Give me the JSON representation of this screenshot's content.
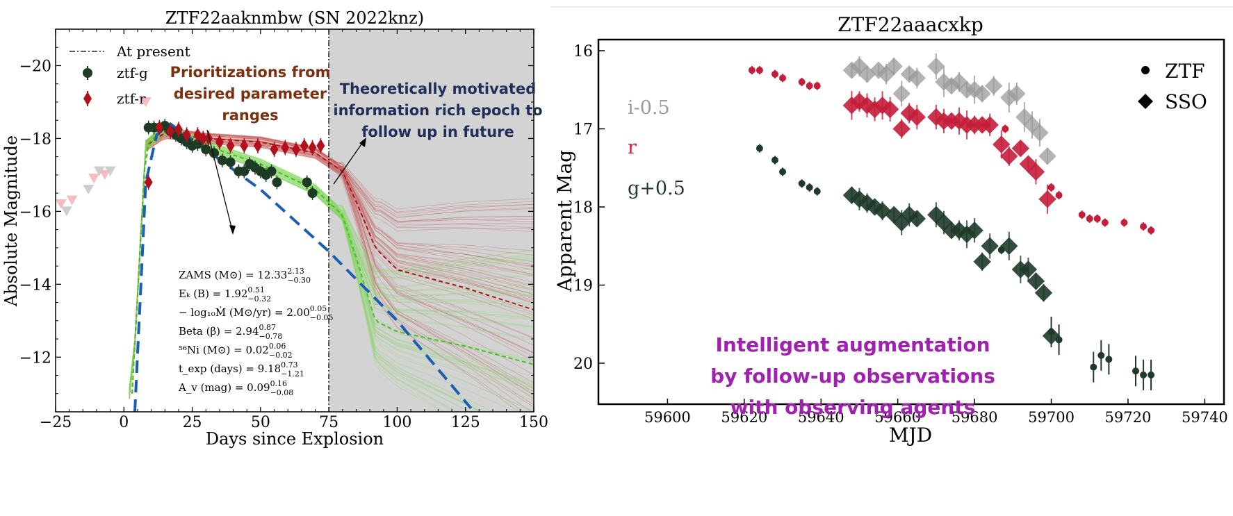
{
  "chart_data": [
    {
      "type": "line",
      "title": "ZTF22aaknmbw (SN 2022knz)",
      "xlabel": "Days since Explosion",
      "ylabel": "Absolute Magnitude",
      "xlim": [
        -25,
        150
      ],
      "ylim": [
        -10.5,
        -21.0
      ],
      "y_inverted": true,
      "xticks": [
        "−25",
        "0",
        "25",
        "50",
        "75",
        "100",
        "125",
        "150"
      ],
      "yticks": [
        "−20",
        "−18",
        "−16",
        "−14",
        "−12"
      ],
      "legend": {
        "placement": "top-left",
        "entries": [
          "At present",
          "ztf-g",
          "ztf-r"
        ]
      },
      "colors": {
        "g": "#1d3a24",
        "r": "#b3101e",
        "model_g": "#7ed957",
        "model_r": "#c0504d",
        "fit": "#1a5fb4",
        "future_band": "#d3d3d3"
      },
      "present_day": 75,
      "series": [
        {
          "name": "ztf-g",
          "marker": "circle",
          "x": [
            9,
            11,
            13,
            15,
            17,
            19,
            21,
            23,
            25,
            27,
            30,
            33,
            36,
            39,
            42,
            44,
            46,
            48,
            50,
            52,
            54,
            56,
            67,
            69
          ],
          "y": [
            -18.3,
            -18.3,
            -18.3,
            -18.35,
            -18.2,
            -18.1,
            -18.0,
            -17.9,
            -17.8,
            -17.85,
            -17.7,
            -17.6,
            -17.4,
            -17.35,
            -17.1,
            -17.1,
            -17.3,
            -17.2,
            -17.1,
            -17.0,
            -17.1,
            -16.8,
            -16.8,
            -16.5
          ]
        },
        {
          "name": "ztf-r",
          "marker": "diamond",
          "x": [
            9,
            13,
            17,
            20,
            23,
            27,
            29,
            31,
            35,
            39,
            44,
            49,
            55,
            59,
            63,
            66,
            69,
            72
          ],
          "y": [
            -16.8,
            -18.3,
            -18.2,
            -18.25,
            -18.1,
            -18.1,
            -18.0,
            -18.0,
            -17.9,
            -17.8,
            -17.8,
            -17.8,
            -17.7,
            -17.75,
            -17.7,
            -17.8,
            -17.75,
            -17.8
          ]
        },
        {
          "name": "early upper limits",
          "marker": "triangle-down",
          "x": [
            -23,
            -21,
            -19,
            -13,
            -11,
            -9,
            -7,
            -5,
            8
          ],
          "y": [
            -16.2,
            -16.0,
            -16.3,
            -16.6,
            -16.9,
            -17.1,
            -17.0,
            -17.1,
            -19.0
          ]
        }
      ],
      "model_median_r": {
        "x": [
          3,
          8,
          15,
          30,
          50,
          70,
          80,
          86,
          92,
          100,
          125,
          150
        ],
        "y": [
          -11,
          -17.8,
          -18.15,
          -18.0,
          -17.9,
          -17.6,
          -17.1,
          -16.1,
          -15.0,
          -14.4,
          -13.9,
          -13.3
        ]
      },
      "model_median_g": {
        "x": [
          3,
          8,
          15,
          30,
          50,
          70,
          80,
          86,
          92,
          100,
          125,
          150
        ],
        "y": [
          -11,
          -17.8,
          -18.3,
          -17.8,
          -17.3,
          -16.6,
          -15.9,
          -14.5,
          -13.0,
          -12.7,
          -12.3,
          -11.8
        ]
      },
      "fit_curve": {
        "x": [
          4,
          8,
          12,
          17,
          30,
          50,
          75,
          100,
          127
        ],
        "y": [
          -10.5,
          -16.8,
          -18.1,
          -18.4,
          -17.7,
          -16.6,
          -14.9,
          -13.0,
          -10.6
        ]
      },
      "parameters": [
        {
          "label": "ZAMS (M⊙) = 12.33",
          "sup": "2.13",
          "sub": "−0.30"
        },
        {
          "label": "Eₖ (B) = 1.92",
          "sup": "0.51",
          "sub": "−0.32"
        },
        {
          "label": "− log₁₀Ṁ (M⊙/yr) = 2.00",
          "sup": "0.05",
          "sub": "−0.05"
        },
        {
          "label": "Beta (β) = 2.94",
          "sup": "0.87",
          "sub": "−0.78"
        },
        {
          "label": "⁵⁶Ni (M⊙) = 0.02",
          "sup": "0.06",
          "sub": "−0.02"
        },
        {
          "label": "t_exp (days) = 9.18",
          "sup": "0.73",
          "sub": "−1.21"
        },
        {
          "label": "A_v (mag) = 0.09",
          "sup": "0.16",
          "sub": "−0.08"
        }
      ],
      "annotations": {
        "prioritization": [
          "Prioritizations from",
          "desired parameter",
          "ranges"
        ],
        "information": [
          "Theoretically motivated",
          "information rich epoch to",
          "follow up in future"
        ]
      }
    },
    {
      "type": "scatter",
      "title": "ZTF22aaacxkp",
      "xlabel": "MJD",
      "ylabel": "Apparent Mag",
      "xlim": [
        59582,
        59745
      ],
      "ylim": [
        15.85,
        20.5
      ],
      "y_inverted": true,
      "xticks": [
        "59600",
        "59620",
        "59640",
        "59660",
        "59680",
        "59700",
        "59720",
        "59740"
      ],
      "yticks": [
        "16",
        "17",
        "18",
        "19",
        "20"
      ],
      "legend": {
        "placement": "top-right",
        "entries": [
          "ZTF",
          "SSO"
        ]
      },
      "band_labels": [
        "i-0.5",
        "r",
        "g+0.5"
      ],
      "colors": {
        "i": "#9a9a9a",
        "r": "#c41e3a",
        "g": "#1f3a2a"
      },
      "series": [
        {
          "name": "i-0.5",
          "marker": "diamond",
          "x": [
            59648,
            59650,
            59652,
            59655,
            59657,
            59659,
            59661,
            59663,
            59665,
            59670,
            59672,
            59674,
            59676,
            59678,
            59680,
            59682,
            59685,
            59689,
            59691,
            59693,
            59695,
            59697,
            59699
          ],
          "y": [
            16.25,
            16.2,
            16.3,
            16.25,
            16.3,
            16.2,
            16.55,
            16.3,
            16.35,
            16.2,
            16.4,
            16.45,
            16.4,
            16.5,
            16.5,
            16.55,
            16.45,
            16.6,
            16.55,
            16.85,
            16.95,
            17.05,
            17.35
          ]
        },
        {
          "name": "r",
          "marker": "diamond",
          "x": [
            59648,
            59650,
            59652,
            59654,
            59656,
            59658,
            59661,
            59663,
            59665,
            59670,
            59672,
            59674,
            59676,
            59678,
            59680,
            59682,
            59684,
            59687,
            59689,
            59692,
            59694,
            59696,
            59699
          ],
          "y": [
            16.7,
            16.65,
            16.7,
            16.75,
            16.7,
            16.75,
            17.0,
            16.8,
            16.85,
            16.85,
            16.9,
            16.9,
            16.9,
            16.95,
            16.95,
            16.95,
            16.95,
            17.2,
            17.35,
            17.25,
            17.45,
            17.55,
            17.9
          ]
        },
        {
          "name": "g+0.5",
          "marker": "diamond",
          "x": [
            59648,
            59650,
            59652,
            59654,
            59656,
            59659,
            59661,
            59663,
            59665,
            59670,
            59672,
            59674,
            59676,
            59678,
            59680,
            59682,
            59684,
            59689,
            59692,
            59694,
            59696,
            59698,
            59700
          ],
          "y": [
            17.85,
            17.9,
            17.95,
            18.0,
            18.05,
            18.1,
            18.2,
            18.1,
            18.15,
            18.1,
            18.2,
            18.3,
            18.3,
            18.35,
            18.3,
            18.7,
            18.5,
            18.5,
            18.8,
            18.8,
            18.95,
            19.1,
            19.65
          ]
        },
        {
          "name": "r ZTF",
          "marker": "circle",
          "x": [
            59622,
            59624,
            59628,
            59630,
            59635,
            59637,
            59639,
            59688,
            59700,
            59702,
            59708,
            59710,
            59712,
            59714,
            59719,
            59724,
            59726
          ],
          "y": [
            16.25,
            16.25,
            16.3,
            16.35,
            16.4,
            16.45,
            16.45,
            17.0,
            17.75,
            17.85,
            18.1,
            18.15,
            18.15,
            18.2,
            18.2,
            18.25,
            18.3
          ]
        },
        {
          "name": "g ZTF",
          "marker": "circle",
          "x": [
            59624,
            59628,
            59630,
            59635,
            59637,
            59639,
            59687,
            59700,
            59702,
            59711,
            59713,
            59715,
            59722,
            59724,
            59726
          ],
          "y": [
            17.25,
            17.4,
            17.55,
            17.7,
            17.75,
            17.8,
            18.55,
            19.6,
            19.7,
            20.05,
            19.9,
            19.95,
            20.1,
            20.15,
            20.15
          ]
        }
      ],
      "annotation": [
        "Intelligent augmentation",
        "by follow-up observations",
        "with observing agents"
      ]
    }
  ]
}
